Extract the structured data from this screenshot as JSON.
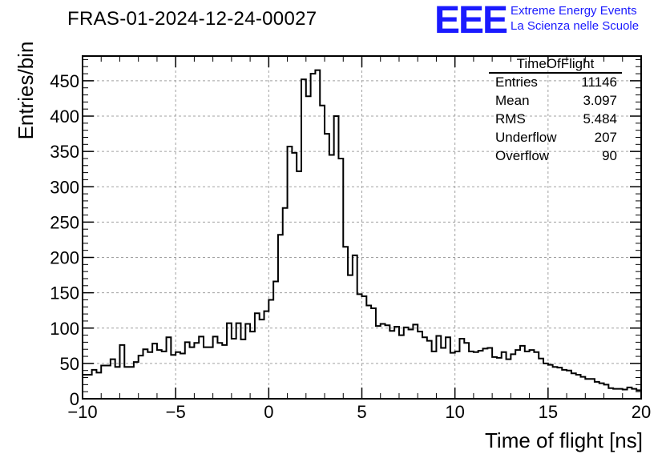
{
  "header": {
    "title": "FRAS-01-2024-12-24-00027",
    "logo_text": "EEE",
    "logo_line1": "Extreme Energy Events",
    "logo_line2": "La Scienza nelle Scuole",
    "logo_color": "#1a1aff"
  },
  "stats_box": {
    "title": "TimeOfFlight",
    "rows": [
      {
        "key": "Entries",
        "value": "11146"
      },
      {
        "key": "Mean",
        "value": "3.097"
      },
      {
        "key": "RMS",
        "value": "5.484"
      },
      {
        "key": "Underflow",
        "value": "207"
      },
      {
        "key": "Overflow",
        "value": "90"
      }
    ]
  },
  "chart_data": {
    "type": "bar",
    "style": "step-histogram",
    "title": "FRAS-01-2024-12-24-00027",
    "xlabel": "Time of flight [ns]",
    "ylabel": "Entries/bin",
    "xlim": [
      -10,
      20
    ],
    "ylim": [
      0,
      485
    ],
    "bin_width": 0.25,
    "grid": true,
    "x_ticks": [
      "−10",
      "−5",
      "0",
      "5",
      "10",
      "15",
      "20"
    ],
    "y_ticks": [
      "0",
      "50",
      "100",
      "150",
      "200",
      "250",
      "300",
      "350",
      "400",
      "450"
    ],
    "series": [
      {
        "values": [
          34,
          34,
          41,
          37,
          47,
          47,
          56,
          45,
          76,
          45,
          45,
          52,
          61,
          70,
          66,
          78,
          69,
          67,
          87,
          62,
          66,
          64,
          80,
          73,
          79,
          88,
          73,
          73,
          88,
          79,
          76,
          107,
          85,
          107,
          84,
          106,
          95,
          121,
          112,
          124,
          140,
          166,
          232,
          270,
          357,
          348,
          322,
          452,
          428,
          460,
          465,
          415,
          375,
          345,
          400,
          340,
          215,
          175,
          203,
          148,
          145,
          132,
          128,
          103,
          106,
          104,
          96,
          102,
          90,
          101,
          98,
          105,
          95,
          87,
          82,
          67,
          89,
          72,
          87,
          65,
          67,
          85,
          79,
          67,
          66,
          68,
          71,
          72,
          59,
          58,
          66,
          56,
          63,
          69,
          75,
          67,
          69,
          66,
          57,
          50,
          48,
          45,
          44,
          41,
          40,
          36,
          34,
          31,
          28,
          28,
          24,
          22,
          20,
          15,
          14,
          14,
          13,
          16,
          14,
          12
        ]
      }
    ]
  }
}
